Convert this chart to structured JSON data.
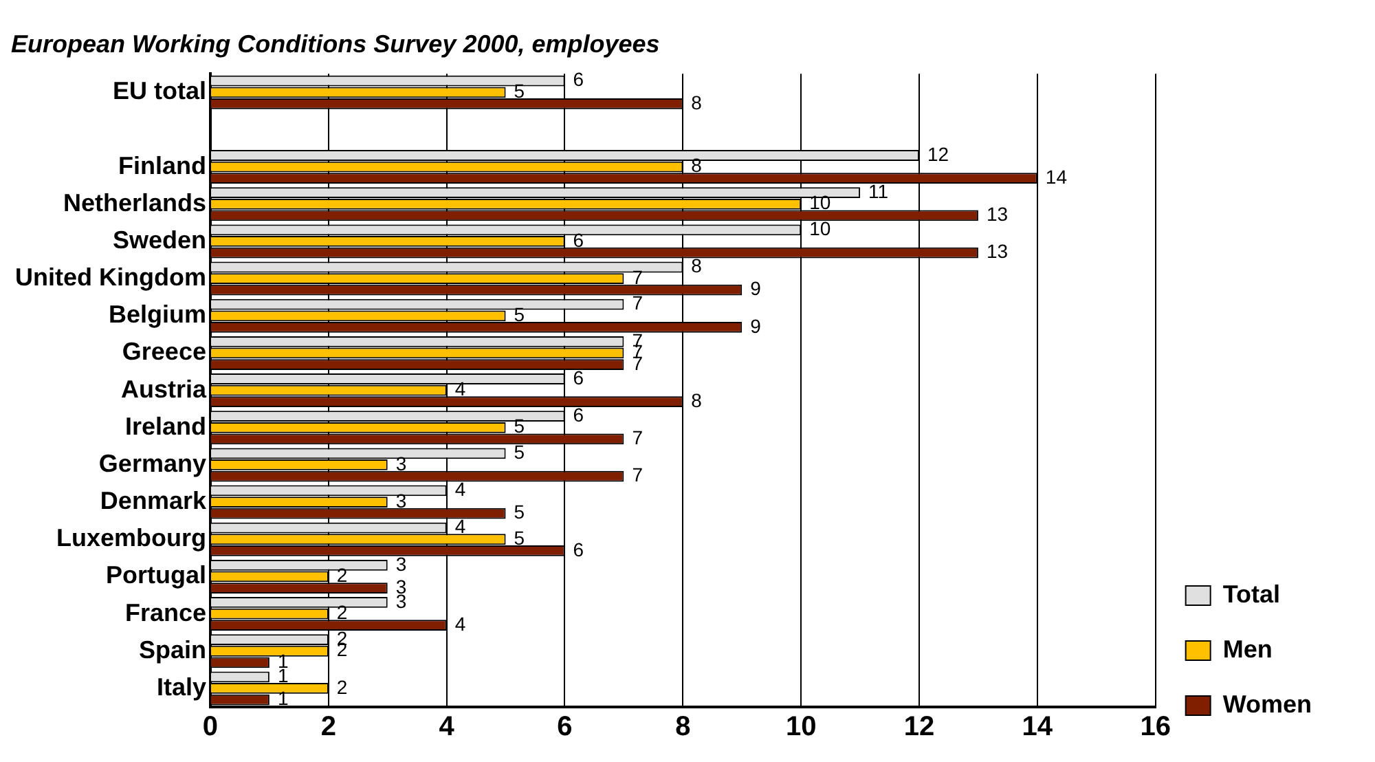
{
  "chart_data": {
    "type": "bar",
    "orientation": "horizontal",
    "title": "European Working Conditions Survey 2000, employees",
    "categories": [
      "EU total",
      null,
      "Finland",
      "Netherlands",
      "Sweden",
      "United Kingdom",
      "Belgium",
      "Greece",
      "Austria",
      "Ireland",
      "Germany",
      "Denmark",
      "Luxembourg",
      "Portugal",
      "France",
      "Spain",
      "Italy"
    ],
    "series": [
      {
        "name": "Total",
        "color": "#e0e0e0",
        "values": [
          6,
          null,
          12,
          11,
          10,
          8,
          7,
          7,
          6,
          6,
          5,
          4,
          4,
          3,
          3,
          2,
          1
        ]
      },
      {
        "name": "Men",
        "color": "#ffc000",
        "values": [
          5,
          null,
          8,
          10,
          6,
          7,
          5,
          7,
          4,
          5,
          3,
          3,
          5,
          2,
          2,
          2,
          2
        ]
      },
      {
        "name": "Women",
        "color": "#7f1f00",
        "values": [
          8,
          null,
          14,
          13,
          13,
          9,
          9,
          7,
          8,
          7,
          7,
          5,
          6,
          3,
          4,
          1,
          1
        ]
      }
    ],
    "xlim": [
      0,
      16
    ],
    "xticks": [
      0,
      2,
      4,
      6,
      8,
      10,
      12,
      14,
      16
    ],
    "grid": "x",
    "legend": "bottom right",
    "data_labels": true
  }
}
